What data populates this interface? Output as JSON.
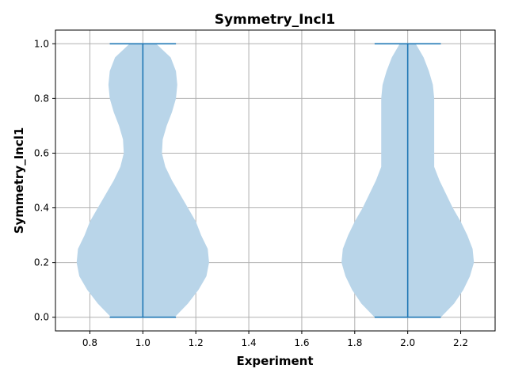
{
  "chart_data": {
    "type": "violin",
    "title": "Symmetry_Incl1",
    "xlabel": "Experiment",
    "ylabel": "Symmetry_Incl1",
    "xlim": [
      0.67,
      2.33
    ],
    "ylim": [
      -0.05,
      1.05
    ],
    "xticks": [
      "0.8",
      "1.0",
      "1.2",
      "1.4",
      "1.6",
      "1.8",
      "2.0",
      "2.2"
    ],
    "yticks": [
      "0.0",
      "0.2",
      "0.4",
      "0.6",
      "0.8",
      "1.0"
    ],
    "grid": true,
    "fill_color": "#b9d5e9",
    "line_color": "#1f77b4",
    "violins": [
      {
        "position": 1.0,
        "min": 0.0,
        "max": 1.0,
        "half_width_profile": [
          [
            0.0,
            0.12
          ],
          [
            0.05,
            0.17
          ],
          [
            0.1,
            0.21
          ],
          [
            0.15,
            0.24
          ],
          [
            0.2,
            0.25
          ],
          [
            0.25,
            0.245
          ],
          [
            0.3,
            0.22
          ],
          [
            0.35,
            0.2
          ],
          [
            0.4,
            0.17
          ],
          [
            0.45,
            0.14
          ],
          [
            0.5,
            0.11
          ],
          [
            0.55,
            0.085
          ],
          [
            0.6,
            0.072
          ],
          [
            0.65,
            0.075
          ],
          [
            0.7,
            0.09
          ],
          [
            0.75,
            0.11
          ],
          [
            0.8,
            0.125
          ],
          [
            0.85,
            0.13
          ],
          [
            0.9,
            0.125
          ],
          [
            0.95,
            0.105
          ],
          [
            1.0,
            0.05
          ]
        ]
      },
      {
        "position": 2.0,
        "min": 0.0,
        "max": 1.0,
        "half_width_profile": [
          [
            0.0,
            0.125
          ],
          [
            0.05,
            0.175
          ],
          [
            0.1,
            0.21
          ],
          [
            0.15,
            0.235
          ],
          [
            0.2,
            0.25
          ],
          [
            0.25,
            0.245
          ],
          [
            0.3,
            0.225
          ],
          [
            0.35,
            0.2
          ],
          [
            0.4,
            0.17
          ],
          [
            0.45,
            0.145
          ],
          [
            0.5,
            0.12
          ],
          [
            0.55,
            0.1
          ],
          [
            0.6,
            0.1
          ],
          [
            0.65,
            0.1
          ],
          [
            0.7,
            0.1
          ],
          [
            0.75,
            0.1
          ],
          [
            0.8,
            0.1
          ],
          [
            0.85,
            0.095
          ],
          [
            0.9,
            0.08
          ],
          [
            0.95,
            0.06
          ],
          [
            1.0,
            0.03
          ]
        ]
      }
    ]
  }
}
